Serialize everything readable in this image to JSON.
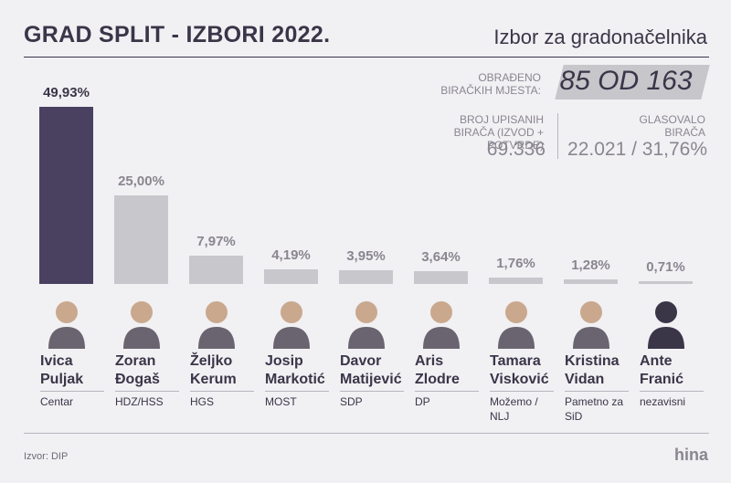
{
  "chart_data": {
    "type": "bar",
    "title": "GRAD SPLIT - IZBORI 2022.",
    "subtitle": "Izbor za gradonačelnika",
    "categories": [
      "Ivica Puljak",
      "Zoran Đogaš",
      "Željko Kerum",
      "Josip Markotić",
      "Davor Matijević",
      "Aris Zlodre",
      "Tamara Visković",
      "Kristina Vidan",
      "Ante Franić"
    ],
    "parties": [
      "Centar",
      "HDZ/HSS",
      "HGS",
      "MOST",
      "SDP",
      "DP",
      "Možemo / NLJ",
      "Pametno za SiD",
      "nezavisni"
    ],
    "values": [
      49.93,
      25.0,
      7.97,
      4.19,
      3.95,
      3.64,
      1.76,
      1.28,
      0.71
    ],
    "value_labels": [
      "49,93%",
      "25,00%",
      "7,97%",
      "4,19%",
      "3,95%",
      "3,64%",
      "1,76%",
      "1,28%",
      "0,71%"
    ],
    "colors": [
      "#4a4060",
      "#c8c7cc",
      "#c8c7cc",
      "#c8c7cc",
      "#c8c7cc",
      "#c8c7cc",
      "#c8c7cc",
      "#c8c7cc",
      "#c8c7cc"
    ]
  },
  "stats": {
    "processed_label": "OBRAĐENO BIRAČKIH MJESTA:",
    "processed_value": "85 OD 163",
    "registered_label": "BROJ UPISANIH BIRAČA (IZVOD + POTVRDE)",
    "registered_value": "69.336",
    "voted_label": "GLASOVALO BIRAČA",
    "voted_value": "22.021 / 31,76%"
  },
  "footer": {
    "source": "Izvor: DIP",
    "logo": "hina"
  }
}
